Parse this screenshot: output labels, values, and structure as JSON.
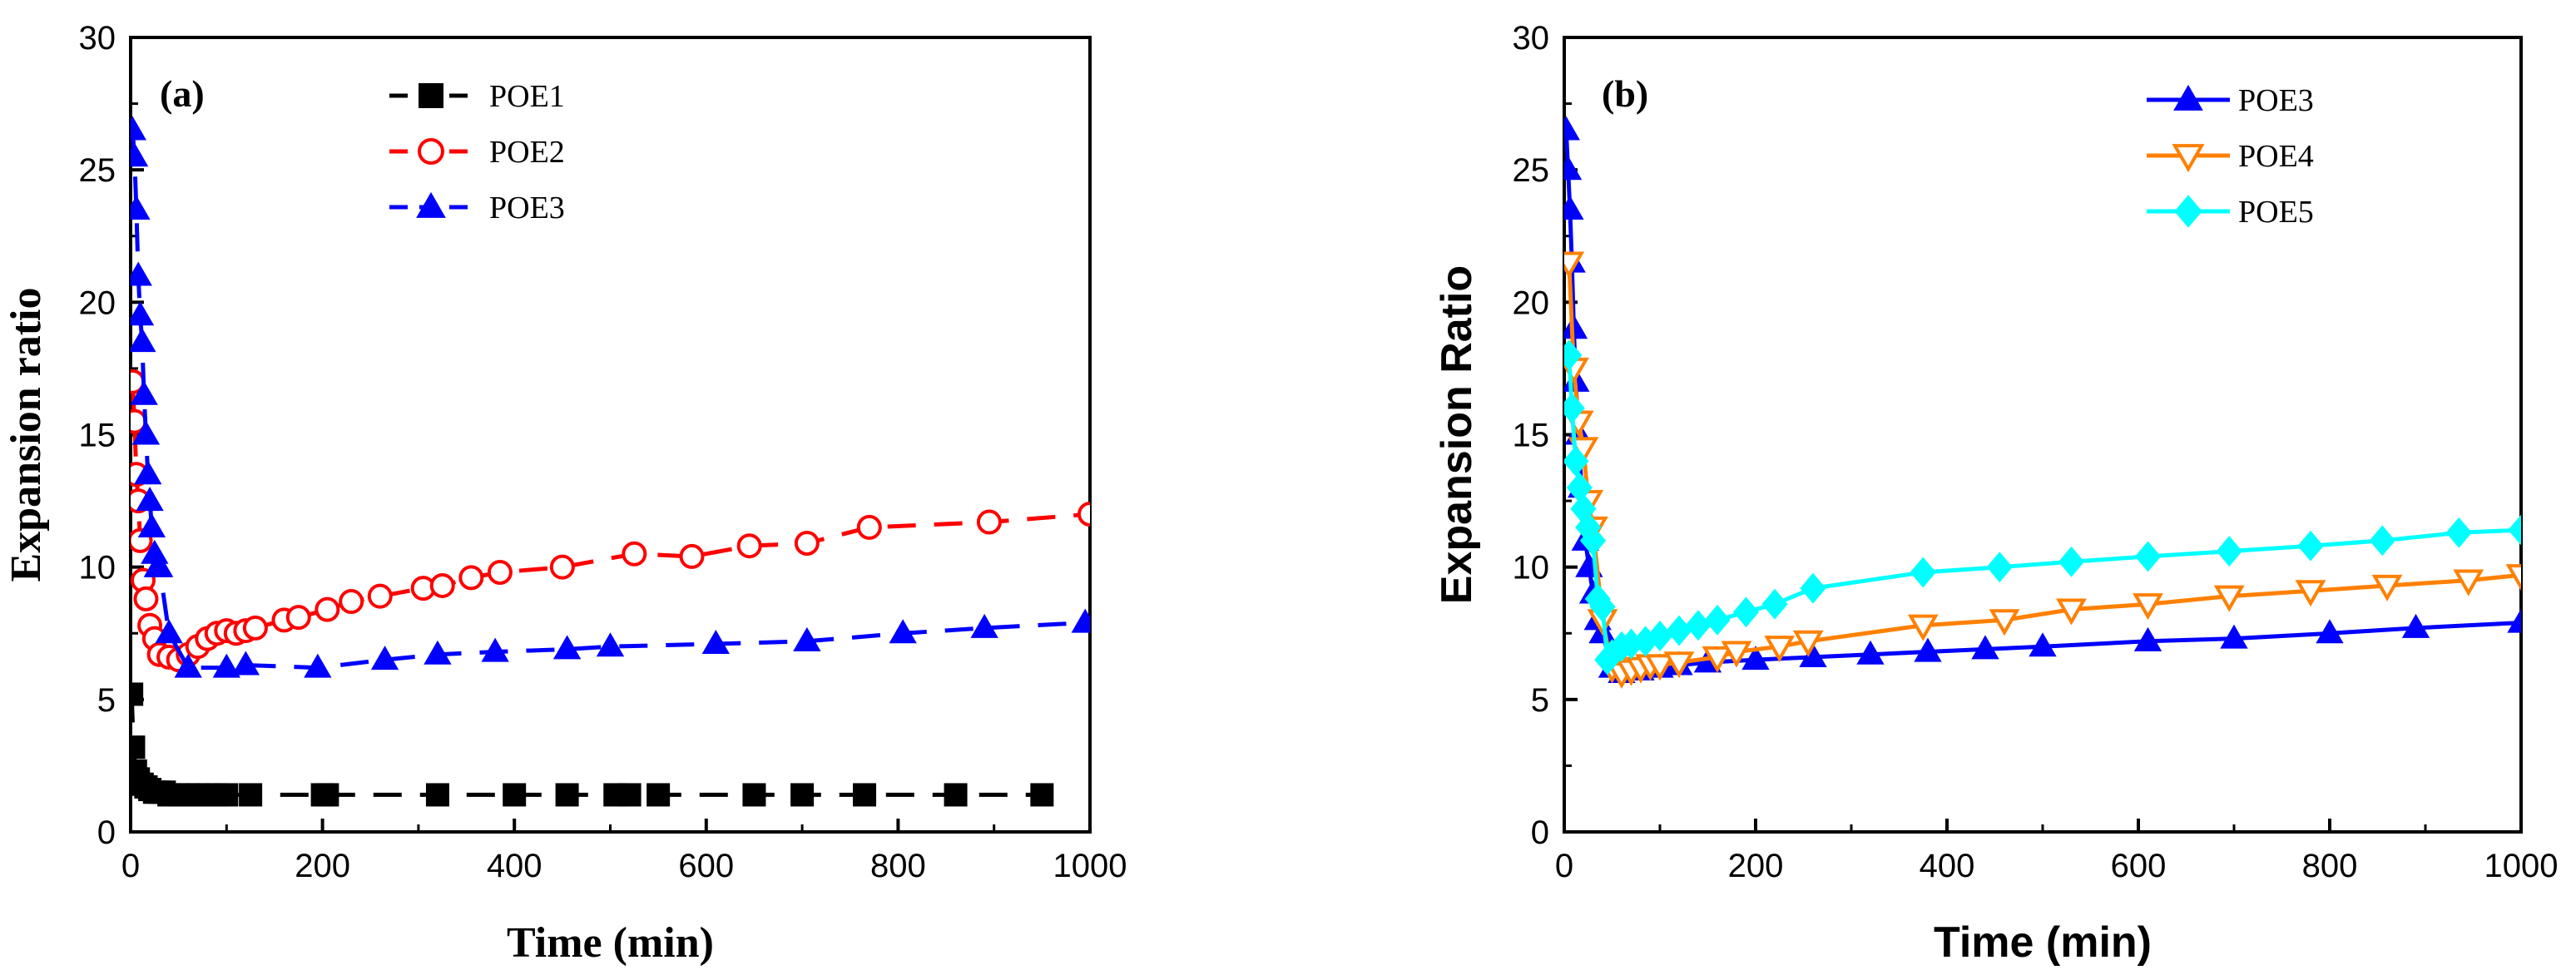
{
  "chart_data": [
    {
      "id": "a",
      "type": "line",
      "panel_label": "(a)",
      "xlabel": "Time (min)",
      "ylabel": "Expansion ratio",
      "xlim": [
        0,
        1000
      ],
      "ylim": [
        0,
        30
      ],
      "xticks": [
        "0",
        "200",
        "400",
        "600",
        "800",
        "1000"
      ],
      "yticks": [
        "0",
        "5",
        "10",
        "15",
        "20",
        "25",
        "30"
      ],
      "legend_placement": "top-center",
      "series": [
        {
          "name": "POE1",
          "color": "#000000",
          "marker": "square",
          "filled": true,
          "dashed": true,
          "x": [
            1,
            3,
            5,
            8,
            12,
            16,
            20,
            25,
            30,
            35,
            40,
            50,
            60,
            70,
            80,
            90,
            100,
            125,
            200,
            205,
            320,
            400,
            455,
            505,
            520,
            550,
            650,
            700,
            765,
            860,
            950
          ],
          "y": [
            5.2,
            3.2,
            2.3,
            2.0,
            1.8,
            1.7,
            1.6,
            1.5,
            1.5,
            1.5,
            1.4,
            1.4,
            1.4,
            1.4,
            1.4,
            1.4,
            1.4,
            1.4,
            1.4,
            1.4,
            1.4,
            1.4,
            1.4,
            1.4,
            1.4,
            1.4,
            1.4,
            1.4,
            1.4,
            1.4,
            1.4
          ]
        },
        {
          "name": "POE2",
          "color": "#ff0000",
          "marker": "circle",
          "filled": false,
          "dashed": true,
          "x": [
            2,
            4,
            6,
            8,
            10,
            13,
            16,
            20,
            25,
            30,
            40,
            50,
            60,
            70,
            80,
            90,
            100,
            110,
            120,
            130,
            160,
            175,
            205,
            230,
            260,
            305,
            325,
            355,
            385,
            450,
            525,
            585,
            645,
            705,
            770,
            895,
            1000
          ],
          "y": [
            17.0,
            15.5,
            13.5,
            12.5,
            11.0,
            9.5,
            8.8,
            7.8,
            7.3,
            6.7,
            6.6,
            6.5,
            6.7,
            7.0,
            7.3,
            7.5,
            7.6,
            7.5,
            7.6,
            7.7,
            8.0,
            8.1,
            8.4,
            8.7,
            8.9,
            9.2,
            9.3,
            9.6,
            9.8,
            10.0,
            10.5,
            10.4,
            10.8,
            10.9,
            11.5,
            11.7,
            12.0
          ]
        },
        {
          "name": "POE3",
          "color": "#0000ff",
          "marker": "triangle",
          "filled": true,
          "dashed": true,
          "x": [
            2,
            4,
            6,
            8,
            10,
            12,
            14,
            16,
            18,
            20,
            22,
            25,
            28,
            30,
            40,
            60,
            100,
            120,
            195,
            265,
            320,
            380,
            455,
            500,
            610,
            705,
            805,
            890,
            995
          ],
          "y": [
            26.5,
            25.5,
            23.5,
            21.0,
            19.5,
            18.5,
            16.5,
            15.0,
            13.5,
            12.5,
            11.5,
            10.5,
            10.0,
            10.0,
            7.5,
            6.2,
            6.2,
            6.3,
            6.2,
            6.5,
            6.7,
            6.8,
            6.9,
            7.0,
            7.1,
            7.2,
            7.5,
            7.7,
            7.9
          ]
        }
      ]
    },
    {
      "id": "b",
      "type": "line",
      "panel_label": "(b)",
      "xlabel": "Time (min)",
      "ylabel": "Expansion Ratio",
      "xlim": [
        0,
        1000
      ],
      "ylim": [
        0,
        30
      ],
      "xticks": [
        "0",
        "200",
        "400",
        "600",
        "800",
        "1000"
      ],
      "yticks": [
        "0",
        "5",
        "10",
        "15",
        "20",
        "25",
        "30"
      ],
      "legend_placement": "top-right",
      "series": [
        {
          "name": "POE3",
          "color": "#0000ff",
          "marker": "triangle",
          "filled": true,
          "dashed": false,
          "x": [
            2,
            4,
            6,
            8,
            10,
            12,
            15,
            18,
            22,
            26,
            30,
            35,
            40,
            50,
            60,
            80,
            100,
            120,
            150,
            200,
            260,
            320,
            380,
            440,
            500,
            610,
            700,
            800,
            890,
            1000
          ],
          "y": [
            26.5,
            25.0,
            23.5,
            21.5,
            19.0,
            17.0,
            15.0,
            13.0,
            11.0,
            10.0,
            9.0,
            8.0,
            7.5,
            6.2,
            6.0,
            6.1,
            6.2,
            6.3,
            6.4,
            6.5,
            6.6,
            6.7,
            6.8,
            6.9,
            7.0,
            7.2,
            7.3,
            7.5,
            7.7,
            7.9
          ]
        },
        {
          "name": "POE4",
          "color": "#ff8000",
          "marker": "triangle-down",
          "filled": false,
          "dashed": false,
          "x": [
            5,
            10,
            15,
            20,
            25,
            30,
            40,
            50,
            60,
            70,
            80,
            90,
            100,
            120,
            160,
            180,
            225,
            255,
            375,
            460,
            530,
            610,
            695,
            780,
            860,
            945,
            1000
          ],
          "y": [
            21.5,
            17.5,
            15.5,
            14.5,
            12.5,
            11.5,
            8.0,
            6.2,
            6.0,
            6.1,
            6.2,
            6.3,
            6.3,
            6.4,
            6.6,
            6.8,
            7.0,
            7.2,
            7.8,
            8.0,
            8.4,
            8.6,
            8.9,
            9.1,
            9.3,
            9.5,
            9.7
          ]
        },
        {
          "name": "POE5",
          "color": "#00ffff",
          "marker": "diamond",
          "filled": true,
          "dashed": false,
          "x": [
            5,
            8,
            12,
            16,
            20,
            25,
            30,
            35,
            40,
            45,
            50,
            60,
            70,
            85,
            100,
            120,
            140,
            160,
            190,
            220,
            260,
            375,
            455,
            530,
            610,
            695,
            780,
            855,
            935,
            1000
          ],
          "y": [
            18.0,
            16.0,
            14.0,
            13.0,
            12.2,
            11.5,
            11.0,
            8.8,
            8.5,
            6.5,
            6.7,
            7.0,
            7.1,
            7.2,
            7.4,
            7.6,
            7.8,
            8.0,
            8.3,
            8.6,
            9.2,
            9.8,
            10.0,
            10.2,
            10.4,
            10.6,
            10.8,
            11.0,
            11.3,
            11.4
          ]
        }
      ]
    }
  ]
}
